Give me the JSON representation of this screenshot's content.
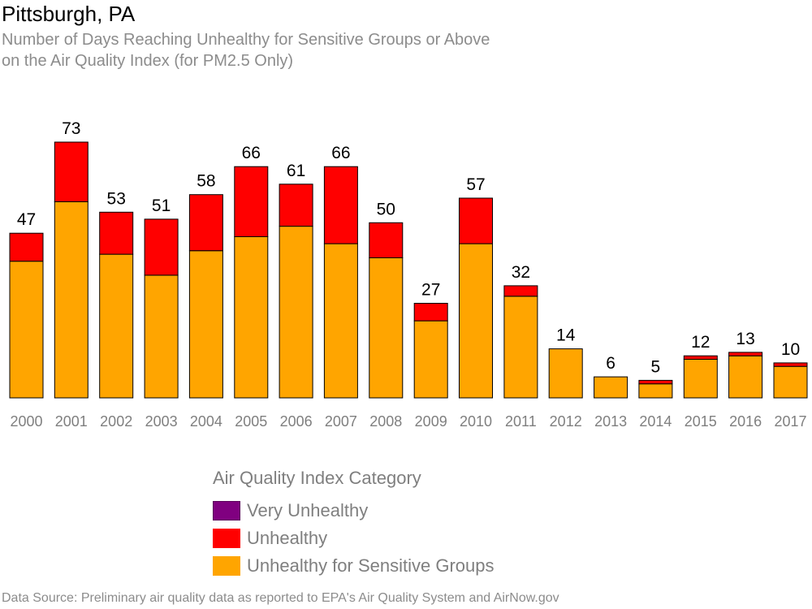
{
  "header": {
    "title": "Pittsburgh, PA",
    "subtitle_line1": "Number of Days Reaching Unhealthy for Sensitive Groups or Above",
    "subtitle_line2": "on the Air Quality Index (for PM2.5 Only)"
  },
  "legend": {
    "title": "Air Quality Index Category",
    "items": [
      {
        "label": "Very Unhealthy",
        "color": "#800080"
      },
      {
        "label": "Unhealthy",
        "color": "#ff0000"
      },
      {
        "label": "Unhealthy for Sensitive Groups",
        "color": "#ffa500"
      }
    ]
  },
  "footer": {
    "source": "Data Source: Preliminary air quality data as reported to EPA's Air Quality System and AirNow.gov"
  },
  "chart_data": {
    "type": "bar",
    "stacked": true,
    "categories": [
      "2000",
      "2001",
      "2002",
      "2003",
      "2004",
      "2005",
      "2006",
      "2007",
      "2008",
      "2009",
      "2010",
      "2011",
      "2012",
      "2013",
      "2014",
      "2015",
      "2016",
      "2017"
    ],
    "series": [
      {
        "name": "Unhealthy for Sensitive Groups",
        "color": "#ffa500",
        "values": [
          39,
          56,
          41,
          35,
          42,
          46,
          49,
          44,
          40,
          22,
          44,
          29,
          14,
          6,
          4,
          11,
          12,
          9
        ]
      },
      {
        "name": "Unhealthy",
        "color": "#ff0000",
        "values": [
          8,
          17,
          12,
          16,
          16,
          20,
          12,
          22,
          10,
          5,
          13,
          3,
          0,
          0,
          1,
          1,
          1,
          1
        ]
      },
      {
        "name": "Very Unhealthy",
        "color": "#800080",
        "values": [
          0,
          0,
          0,
          0,
          0,
          0,
          0,
          0,
          0,
          0,
          0,
          0,
          0,
          0,
          0,
          0,
          0,
          0
        ]
      }
    ],
    "totals": [
      47,
      73,
      53,
      51,
      58,
      66,
      61,
      66,
      50,
      27,
      57,
      32,
      14,
      6,
      5,
      12,
      13,
      10
    ],
    "ylim": [
      0,
      80
    ],
    "grid": false,
    "legend_position": "bottom"
  }
}
